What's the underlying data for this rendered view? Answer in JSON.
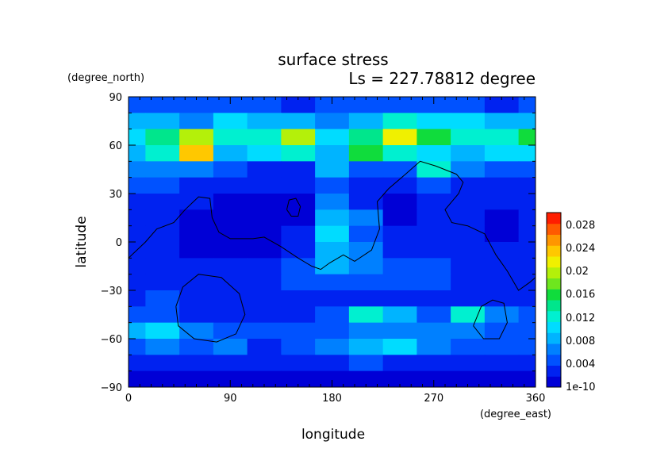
{
  "chart_data": {
    "type": "heatmap",
    "title": "surface stress",
    "subtitle": "Ls = 227.78812 degree",
    "xlabel": "longitude",
    "ylabel": "latitude",
    "xunit": "(degree_east)",
    "yunit": "(degree_north)",
    "xlim": [
      0,
      360
    ],
    "ylim": [
      -90,
      90
    ],
    "xticks": [
      "0",
      "90",
      "180",
      "270",
      "360"
    ],
    "yticks": [
      "90",
      "60",
      "30",
      "0",
      "−30",
      "−60",
      "−90"
    ],
    "colorbar": {
      "ticks": [
        "0.028",
        "0.024",
        "0.02",
        "0.016",
        "0.012",
        "0.008",
        "0.004",
        "1e-10"
      ],
      "colors": [
        "#0000d6",
        "#0022f0",
        "#0052ff",
        "#0080ff",
        "#00b4ff",
        "#00dcff",
        "#00f0d0",
        "#00e68c",
        "#10dc3c",
        "#6ee61e",
        "#b4f00a",
        "#f0f000",
        "#ffc800",
        "#ff9600",
        "#ff5a00",
        "#ff1e00"
      ]
    },
    "x": [
      0,
      30,
      60,
      90,
      120,
      150,
      180,
      210,
      240,
      270,
      300,
      330,
      360
    ],
    "y": [
      85,
      75,
      65,
      55,
      45,
      35,
      25,
      15,
      5,
      -5,
      -15,
      -25,
      -35,
      -45,
      -55,
      -65,
      -75,
      -85
    ],
    "values": [
      [
        0.004,
        0.004,
        0.004,
        0.005,
        0.004,
        0.003,
        0.004,
        0.004,
        0.005,
        0.004,
        0.004,
        0.003,
        0.004
      ],
      [
        0.009,
        0.008,
        0.007,
        0.01,
        0.008,
        0.008,
        0.006,
        0.009,
        0.012,
        0.011,
        0.01,
        0.009,
        0.009
      ],
      [
        0.01,
        0.014,
        0.02,
        0.012,
        0.013,
        0.02,
        0.01,
        0.014,
        0.022,
        0.015,
        0.012,
        0.013,
        0.016
      ],
      [
        0.008,
        0.012,
        0.023,
        0.009,
        0.01,
        0.012,
        0.009,
        0.016,
        0.012,
        0.011,
        0.009,
        0.01,
        0.011
      ],
      [
        0.006,
        0.007,
        0.006,
        0.004,
        0.003,
        0.003,
        0.009,
        0.004,
        0.004,
        0.012,
        0.006,
        0.005,
        0.004
      ],
      [
        0.004,
        0.004,
        0.003,
        0.002,
        0.002,
        0.002,
        0.004,
        0.002,
        0.002,
        0.005,
        0.003,
        0.002,
        0.003
      ],
      [
        0.002,
        0.003,
        0.002,
        0.001,
        0.001,
        0.001,
        0.006,
        0.003,
        0.001,
        0.002,
        0.003,
        0.002,
        0.002
      ],
      [
        0.002,
        0.002,
        0.001,
        0.001,
        0.001,
        0.001,
        0.009,
        0.006,
        0.001,
        0.002,
        0.002,
        0.001,
        0.002
      ],
      [
        0.002,
        0.002,
        0.001,
        0.001,
        0.001,
        0.002,
        0.01,
        0.004,
        0.002,
        0.003,
        0.002,
        0.001,
        0.002
      ],
      [
        0.003,
        0.002,
        0.001,
        0.001,
        0.001,
        0.003,
        0.009,
        0.007,
        0.003,
        0.003,
        0.002,
        0.002,
        0.002
      ],
      [
        0.003,
        0.002,
        0.002,
        0.002,
        0.002,
        0.004,
        0.009,
        0.006,
        0.004,
        0.004,
        0.003,
        0.002,
        0.002
      ],
      [
        0.002,
        0.003,
        0.002,
        0.002,
        0.003,
        0.004,
        0.005,
        0.005,
        0.004,
        0.004,
        0.003,
        0.002,
        0.002
      ],
      [
        0.003,
        0.004,
        0.002,
        0.002,
        0.003,
        0.002,
        0.002,
        0.003,
        0.002,
        0.002,
        0.002,
        0.003,
        0.003
      ],
      [
        0.005,
        0.004,
        0.003,
        0.002,
        0.003,
        0.003,
        0.004,
        0.013,
        0.008,
        0.004,
        0.012,
        0.006,
        0.004
      ],
      [
        0.008,
        0.01,
        0.006,
        0.004,
        0.004,
        0.005,
        0.005,
        0.006,
        0.006,
        0.006,
        0.006,
        0.004,
        0.005
      ],
      [
        0.004,
        0.006,
        0.004,
        0.006,
        0.003,
        0.004,
        0.006,
        0.008,
        0.01,
        0.006,
        0.004,
        0.004,
        0.004
      ],
      [
        0.002,
        0.003,
        0.002,
        0.002,
        0.002,
        0.002,
        0.003,
        0.004,
        0.003,
        0.003,
        0.002,
        0.002,
        0.002
      ],
      [
        0.001,
        0.001,
        0.001,
        0.001,
        0.001,
        0.001,
        0.001,
        0.001,
        0.001,
        0.001,
        0.001,
        0.001,
        0.001
      ]
    ],
    "cmin": 0,
    "cmax": 0.03,
    "contour_lines": [
      [
        [
          0,
          -10
        ],
        [
          15,
          0
        ],
        [
          25,
          8
        ],
        [
          40,
          12
        ],
        [
          50,
          20
        ],
        [
          62,
          28
        ],
        [
          72,
          27
        ],
        [
          74,
          15
        ],
        [
          80,
          6
        ],
        [
          90,
          2
        ],
        [
          110,
          2
        ],
        [
          120,
          3
        ],
        [
          135,
          -3
        ],
        [
          150,
          -10
        ],
        [
          162,
          -15
        ],
        [
          170,
          -17
        ],
        [
          178,
          -13
        ],
        [
          190,
          -8
        ],
        [
          200,
          -12
        ],
        [
          215,
          -5
        ],
        [
          222,
          8
        ],
        [
          220,
          25
        ],
        [
          230,
          33
        ],
        [
          245,
          42
        ],
        [
          258,
          50
        ],
        [
          272,
          47
        ],
        [
          290,
          42
        ],
        [
          296,
          37
        ],
        [
          292,
          30
        ],
        [
          280,
          20
        ],
        [
          286,
          12
        ],
        [
          300,
          10
        ],
        [
          315,
          5
        ],
        [
          325,
          -8
        ],
        [
          335,
          -18
        ],
        [
          345,
          -30
        ],
        [
          355,
          -25
        ],
        [
          360,
          -22
        ]
      ],
      [
        [
          140,
          20
        ],
        [
          142,
          26
        ],
        [
          148,
          27
        ],
        [
          152,
          22
        ],
        [
          150,
          16
        ],
        [
          144,
          16
        ],
        [
          140,
          20
        ]
      ],
      [
        [
          42,
          -40
        ],
        [
          48,
          -28
        ],
        [
          62,
          -20
        ],
        [
          82,
          -22
        ],
        [
          98,
          -32
        ],
        [
          103,
          -45
        ],
        [
          95,
          -57
        ],
        [
          78,
          -62
        ],
        [
          58,
          -60
        ],
        [
          44,
          -52
        ],
        [
          42,
          -40
        ]
      ],
      [
        [
          305,
          -52
        ],
        [
          312,
          -40
        ],
        [
          322,
          -36
        ],
        [
          332,
          -38
        ],
        [
          335,
          -50
        ],
        [
          328,
          -60
        ],
        [
          314,
          -60
        ],
        [
          305,
          -52
        ]
      ]
    ]
  }
}
